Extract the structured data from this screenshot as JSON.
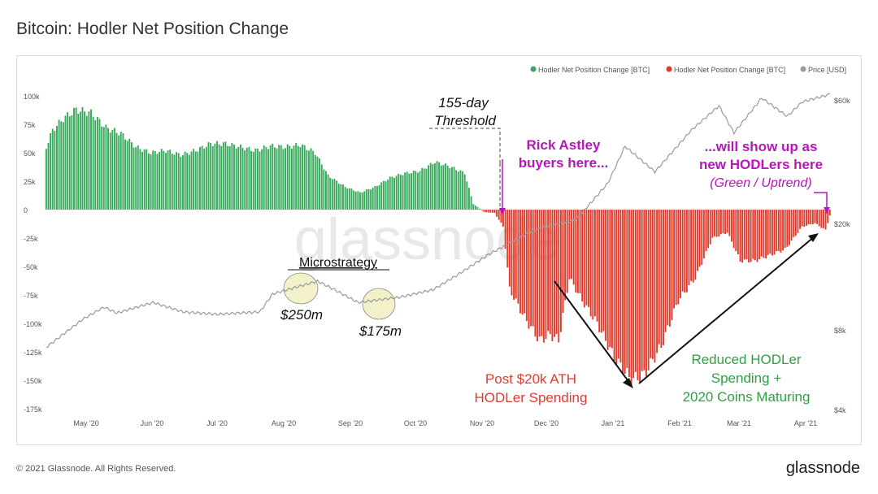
{
  "title": "Bitcoin: Hodler Net Position Change",
  "footer": "© 2021 Glassnode. All Rights Reserved.",
  "brand": "glassnode",
  "watermark": "glassnode",
  "colors": {
    "positive": "#37a95a",
    "negative": "#e1392a",
    "price": "#9a9a9a",
    "annotation_red": "#e23a2e",
    "annotation_green": "#2ea043",
    "annotation_magenta": "#b517b8",
    "highlight": "#f1eec0"
  },
  "chart_data": {
    "type": "bar",
    "legend": [
      "Hodler Net Position Change [BTC]",
      "Hodler Net Position Change [BTC]",
      "Price [USD]"
    ],
    "legend_position": "top-right",
    "x_ticks": [
      "May '20",
      "Jun '20",
      "Jul '20",
      "Aug '20",
      "Sep '20",
      "Oct '20",
      "Nov '20",
      "Dec '20",
      "Jan '21",
      "Feb '21",
      "Mar '21",
      "Apr '21"
    ],
    "y_ticks": [
      "100k",
      "75k",
      "50k",
      "25k",
      "0",
      "-25k",
      "-50k",
      "-75k",
      "-100k",
      "-125k",
      "-150k",
      "-175k"
    ],
    "y_right_ticks": [
      "$60k",
      "$20k",
      "$8k",
      "$4k"
    ],
    "ylim": [
      -175000,
      100000
    ],
    "y_right_log": true,
    "x_range": [
      "2020-04-12",
      "2021-04-14"
    ],
    "bar_series": {
      "name": "Hodler Net Position Change [BTC]",
      "unit": "BTC",
      "anchors": [
        [
          "2020-04-12",
          55000
        ],
        [
          "2020-04-15",
          70000
        ],
        [
          "2020-04-20",
          80000
        ],
        [
          "2020-04-26",
          88000
        ],
        [
          "2020-05-03",
          85000
        ],
        [
          "2020-05-10",
          72000
        ],
        [
          "2020-05-17",
          67000
        ],
        [
          "2020-05-24",
          55000
        ],
        [
          "2020-05-31",
          50000
        ],
        [
          "2020-06-07",
          52000
        ],
        [
          "2020-06-14",
          48000
        ],
        [
          "2020-06-21",
          52000
        ],
        [
          "2020-06-28",
          58000
        ],
        [
          "2020-07-05",
          58000
        ],
        [
          "2020-07-12",
          55000
        ],
        [
          "2020-07-19",
          52000
        ],
        [
          "2020-07-26",
          56000
        ],
        [
          "2020-08-02",
          55000
        ],
        [
          "2020-08-09",
          57000
        ],
        [
          "2020-08-16",
          50000
        ],
        [
          "2020-08-22",
          30000
        ],
        [
          "2020-08-30",
          20000
        ],
        [
          "2020-09-06",
          15000
        ],
        [
          "2020-09-13",
          20000
        ],
        [
          "2020-09-20",
          28000
        ],
        [
          "2020-09-27",
          32000
        ],
        [
          "2020-10-04",
          34000
        ],
        [
          "2020-10-11",
          42000
        ],
        [
          "2020-10-18",
          38000
        ],
        [
          "2020-10-25",
          32000
        ],
        [
          "2020-10-29",
          5000
        ],
        [
          "2020-11-03",
          -2000
        ],
        [
          "2020-11-08",
          -3000
        ],
        [
          "2020-11-12",
          -15000
        ],
        [
          "2020-11-15",
          -70000
        ],
        [
          "2020-11-22",
          -95000
        ],
        [
          "2020-11-29",
          -115000
        ],
        [
          "2020-12-04",
          -110000
        ],
        [
          "2020-12-08",
          -115000
        ],
        [
          "2020-12-13",
          -60000
        ],
        [
          "2020-12-19",
          -80000
        ],
        [
          "2020-12-26",
          -100000
        ],
        [
          "2021-01-03",
          -130000
        ],
        [
          "2021-01-11",
          -150000
        ],
        [
          "2021-01-17",
          -145000
        ],
        [
          "2021-01-25",
          -120000
        ],
        [
          "2021-02-02",
          -80000
        ],
        [
          "2021-02-10",
          -60000
        ],
        [
          "2021-02-18",
          -25000
        ],
        [
          "2021-02-25",
          -20000
        ],
        [
          "2021-03-03",
          -45000
        ],
        [
          "2021-03-10",
          -45000
        ],
        [
          "2021-03-17",
          -40000
        ],
        [
          "2021-03-24",
          -35000
        ],
        [
          "2021-04-01",
          -15000
        ],
        [
          "2021-04-07",
          -12000
        ],
        [
          "2021-04-12",
          -18000
        ],
        [
          "2021-04-14",
          -5000
        ]
      ]
    },
    "price_series": {
      "name": "Price [USD]",
      "unit": "USD",
      "points": [
        [
          "2020-04-12",
          6900
        ],
        [
          "2020-04-29",
          8800
        ],
        [
          "2020-05-09",
          9800
        ],
        [
          "2020-05-15",
          9300
        ],
        [
          "2020-06-01",
          10200
        ],
        [
          "2020-06-15",
          9400
        ],
        [
          "2020-07-01",
          9200
        ],
        [
          "2020-07-21",
          9400
        ],
        [
          "2020-07-27",
          11000
        ],
        [
          "2020-08-17",
          12300
        ],
        [
          "2020-08-25",
          11400
        ],
        [
          "2020-09-05",
          10200
        ],
        [
          "2020-09-25",
          10700
        ],
        [
          "2020-10-10",
          11400
        ],
        [
          "2020-10-21",
          12900
        ],
        [
          "2020-11-05",
          15500
        ],
        [
          "2020-11-25",
          19000
        ],
        [
          "2020-12-01",
          19700
        ],
        [
          "2020-12-16",
          21000
        ],
        [
          "2020-12-31",
          29000
        ],
        [
          "2021-01-08",
          40000
        ],
        [
          "2021-01-22",
          32000
        ],
        [
          "2021-02-08",
          46000
        ],
        [
          "2021-02-21",
          57000
        ],
        [
          "2021-02-28",
          45000
        ],
        [
          "2021-03-13",
          61000
        ],
        [
          "2021-03-25",
          52000
        ],
        [
          "2021-04-01",
          59000
        ],
        [
          "2021-04-14",
          63000
        ]
      ]
    },
    "annotations": {
      "threshold": [
        "155-day",
        "Threshold"
      ],
      "rick": [
        "Rick Astley",
        "buyers here..."
      ],
      "hodlers": [
        "...will show up as",
        "new HODLers here",
        "(Green / Uptrend)"
      ],
      "microstrategy": "Microstrategy",
      "ms1": "$250m",
      "ms2": "$175m",
      "post20k": [
        "Post $20k ATH",
        "HODLer Spending"
      ],
      "reduced": [
        "Reduced HODLer",
        "Spending +",
        "2020 Coins Maturing"
      ]
    }
  }
}
